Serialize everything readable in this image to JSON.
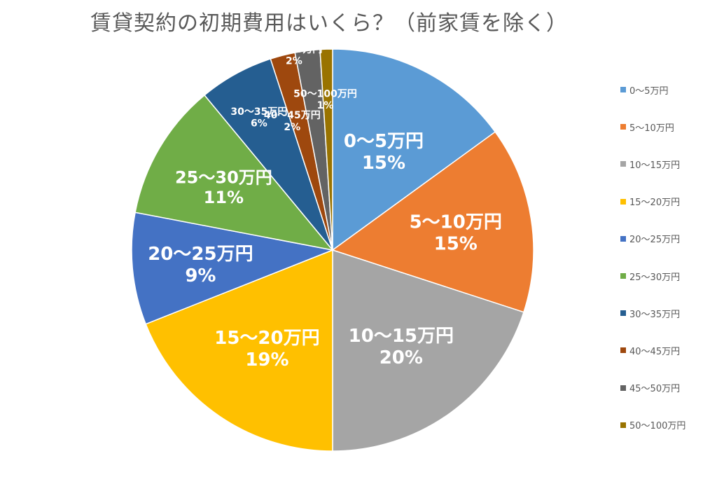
{
  "chart_data": {
    "type": "pie",
    "title": "賃貸契約の初期費用はいくら？（前家賃を除く）",
    "categories": [
      "0～5万円",
      "5～10万円",
      "10～15万円",
      "15～20万円",
      "20～25万円",
      "25～30万円",
      "30～35万円",
      "40～45万円",
      "45～50万円",
      "50～100万円"
    ],
    "values": [
      15,
      15,
      20,
      19,
      9,
      11,
      6,
      2,
      2,
      1
    ],
    "value_labels": [
      "15%",
      "15%",
      "20%",
      "19%",
      "9%",
      "11%",
      "6%",
      "2%",
      "2%",
      "1%"
    ],
    "colors": [
      "#5B9BD5",
      "#ED7D31",
      "#A5A5A5",
      "#FFC000",
      "#4472C4",
      "#70AD47",
      "#255E91",
      "#9E480E",
      "#636363",
      "#997300"
    ],
    "legend_position": "right"
  }
}
